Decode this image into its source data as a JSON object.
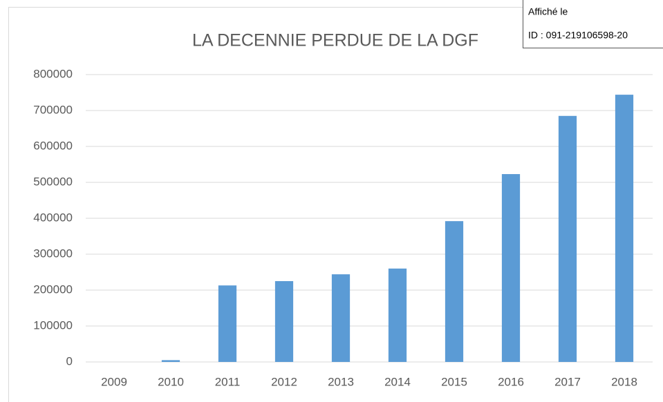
{
  "chart_data": {
    "type": "bar",
    "title": "LA DECENNIE PERDUE DE LA DGF",
    "categories": [
      "2009",
      "2010",
      "2011",
      "2012",
      "2013",
      "2014",
      "2015",
      "2016",
      "2017",
      "2018"
    ],
    "values": [
      0,
      5000,
      213000,
      225000,
      244000,
      260000,
      392000,
      523000,
      685000,
      744000
    ],
    "color": "#5b9bd5",
    "ylim": [
      0,
      800000
    ],
    "yticks": [
      0,
      100000,
      200000,
      300000,
      400000,
      500000,
      600000,
      700000,
      800000
    ],
    "grid": true
  },
  "stamp": {
    "line1": "Affiché le",
    "line2": "ID : 091-219106598-20"
  }
}
